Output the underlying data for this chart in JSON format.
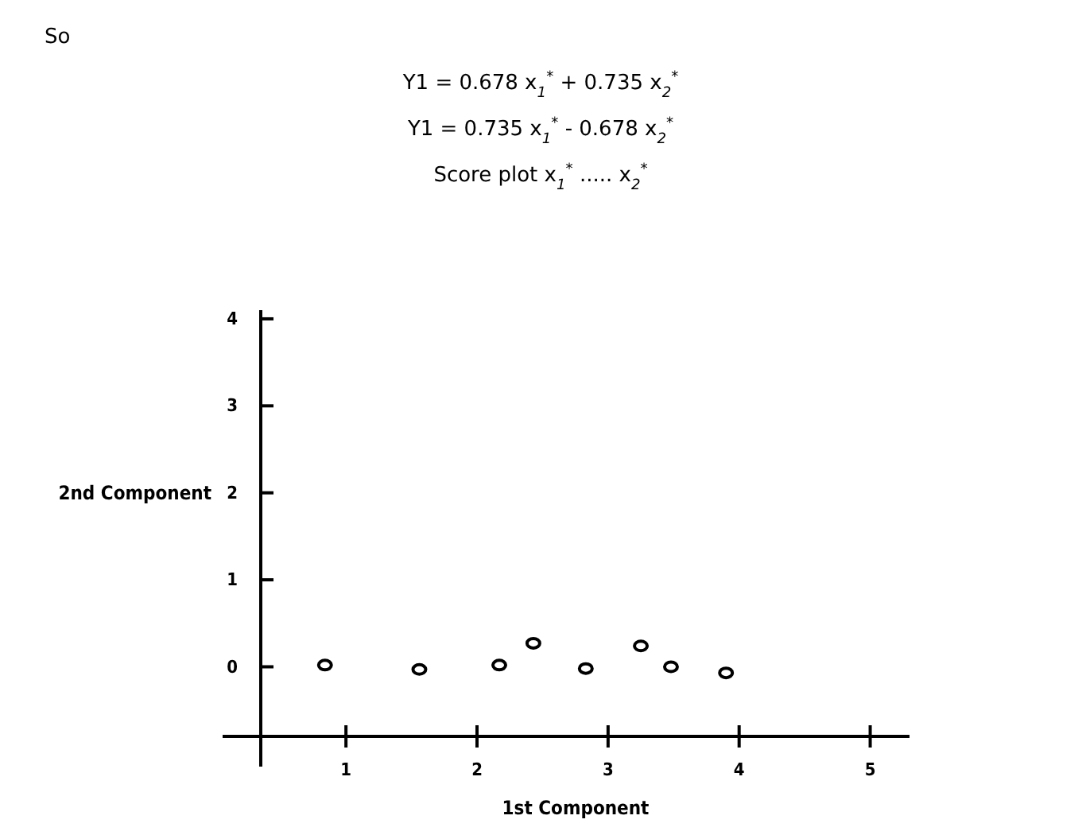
{
  "chart_data": {
    "type": "scatter",
    "annotations": [
      "So",
      "Y1 = 0.678 x$_{1}$$^{*}$ + 0.735 x$_{2}$$^{*}$",
      "Y1 = 0.735 x$_{1}$$^{*}$ -  0.678 x$_{2}$$^{*}$",
      "Score plot x$_{1}$$^{*}$ ..... x$_{2}$$^{*}$"
    ],
    "xlabel": "1st Component",
    "ylabel": "2nd Component",
    "x": [
      0.84,
      1.56,
      2.17,
      2.43,
      2.83,
      3.25,
      3.48,
      3.9
    ],
    "series": [
      {
        "color": "#000000",
        "values": [
          0.02,
          -0.03,
          0.02,
          0.27,
          -0.02,
          0.24,
          0.0,
          -0.07
        ]
      }
    ],
    "xlim": [
      0.35,
      5.3
    ],
    "ylim": [
      -0.8,
      4.1
    ],
    "xticks": [
      1,
      2,
      3,
      4,
      5
    ],
    "yticks": [
      0,
      1,
      2,
      3,
      4
    ],
    "marker": "circle"
  }
}
